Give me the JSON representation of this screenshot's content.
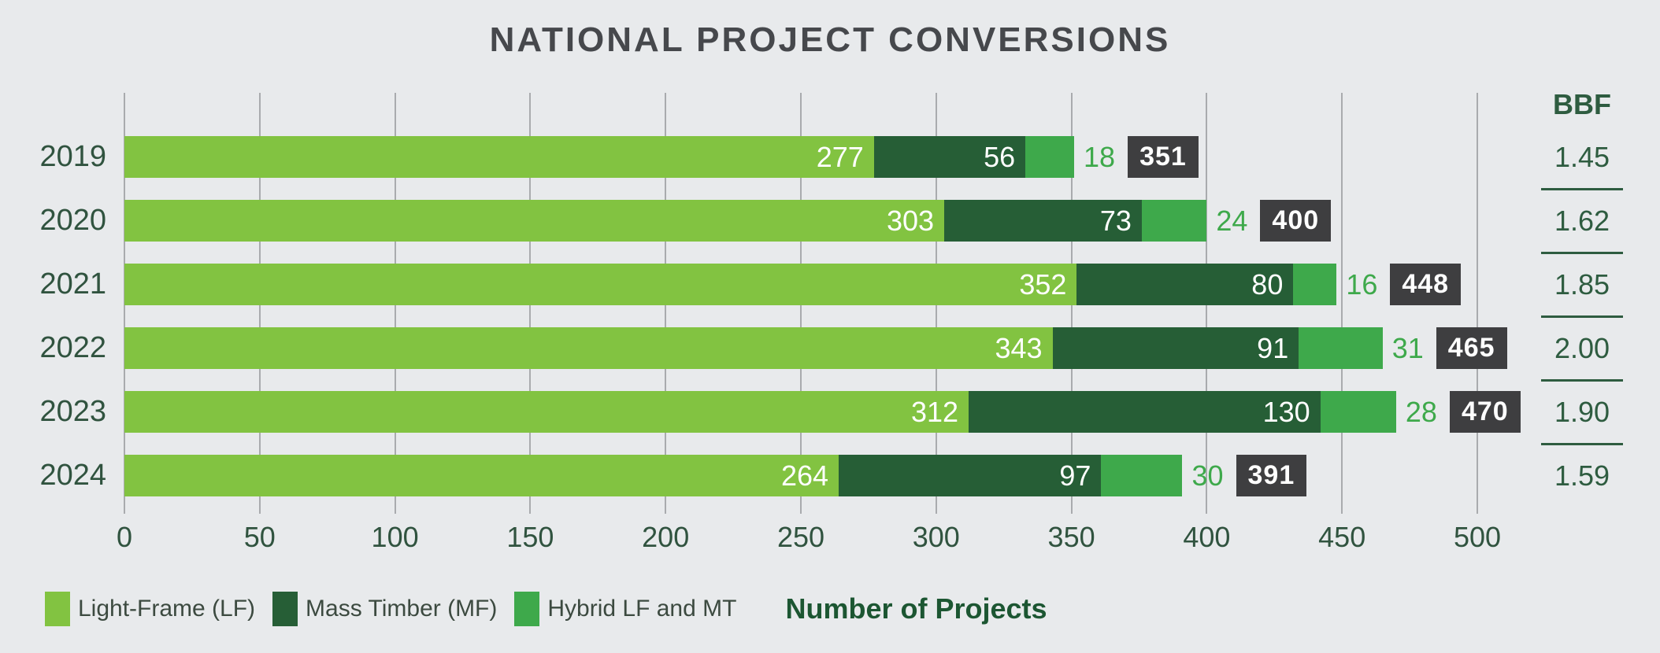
{
  "title": "NATIONAL PROJECT CONVERSIONS",
  "colors": {
    "background": "#E8EAEC",
    "title_text": "#46484C",
    "axis_text": "#30533F",
    "gridline": "#A9ABAE",
    "light_frame": "#82C341",
    "mass_timber": "#265E36",
    "hybrid": "#3EA94B",
    "bar_value_text": "#FFFFFF",
    "total_badge_bg": "#3E3E40",
    "total_badge_text": "#FFFFFF",
    "bbf_text": "#2E5C40",
    "legend_text": "#3C4A40",
    "xlabel_text": "#1C5632"
  },
  "chart_data": {
    "type": "bar",
    "orientation": "horizontal",
    "stacked": true,
    "grid": true,
    "legend_position": "bottom",
    "title": "NATIONAL PROJECT CONVERSIONS",
    "xlabel": "Number of Projects",
    "xlim": [
      0,
      500
    ],
    "xticks": [
      0,
      50,
      100,
      150,
      200,
      250,
      300,
      350,
      400,
      450,
      500
    ],
    "categories": [
      "2019",
      "2020",
      "2021",
      "2022",
      "2023",
      "2024"
    ],
    "series": [
      {
        "name": "Light-Frame (LF)",
        "color_key": "light_frame",
        "label_inside": true,
        "values": [
          277,
          303,
          352,
          343,
          312,
          264
        ]
      },
      {
        "name": "Mass Timber (MF)",
        "color_key": "mass_timber",
        "label_inside": true,
        "values": [
          56,
          73,
          80,
          91,
          130,
          97
        ]
      },
      {
        "name": "Hybrid LF and MT",
        "color_key": "hybrid",
        "label_inside": false,
        "values": [
          18,
          24,
          16,
          31,
          28,
          30
        ]
      }
    ],
    "totals": [
      351,
      400,
      448,
      465,
      470,
      391
    ],
    "bbf": {
      "header": "BBF",
      "values": [
        "1.45",
        "1.62",
        "1.85",
        "2.00",
        "1.90",
        "1.59"
      ]
    }
  }
}
